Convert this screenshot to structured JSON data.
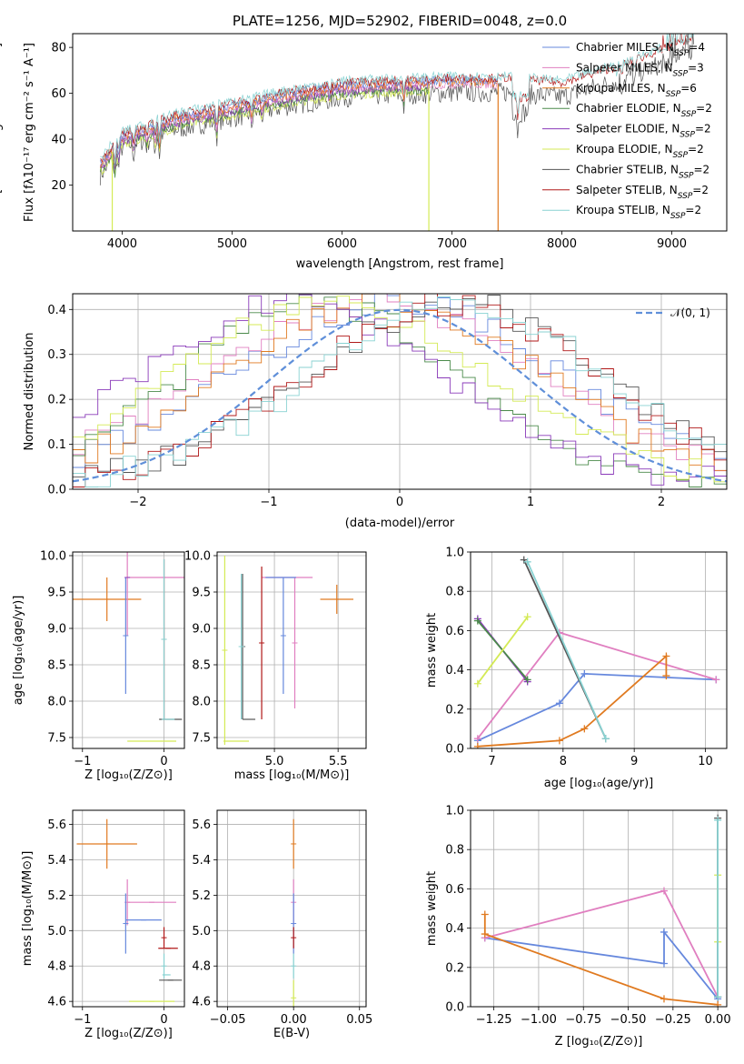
{
  "colors": {
    "chabrier_miles": "#6688dd",
    "salpeter_miles": "#e07fc0",
    "kroupa_miles": "#e07a20",
    "chabrier_elodie": "#4a8a4a",
    "salpeter_elodie": "#8a3ab9",
    "kroupa_elodie": "#d4ea55",
    "chabrier_stelib": "#555555",
    "salpeter_stelib": "#b01818",
    "kroupa_stelib": "#88d2d2",
    "gaussian": "#5f8fd9",
    "grid": "#b0b0b0"
  },
  "chart_data": [
    {
      "type": "line",
      "title": "PLATE=1256, MJD=52902, FIBERID=0048, z=0.0",
      "xlabel": "wavelength [Angstrom, rest frame]",
      "ylabel": "Flux [fλ10⁻¹⁷ erg cm⁻² s⁻¹ A⁻¹]",
      "xlim": [
        3550,
        9500
      ],
      "ylim": [
        0,
        86
      ],
      "xticks": [
        "4000",
        "5000",
        "6000",
        "7000",
        "8000",
        "9000"
      ],
      "yticks": [
        "20",
        "40",
        "60",
        "80"
      ],
      "grid": false,
      "legend_position": "top-right",
      "series": [
        {
          "name": "Chabrier MILES, N_SSP=4",
          "color_key": "chabrier_miles"
        },
        {
          "name": "Salpeter MILES, N_SSP=3",
          "color_key": "salpeter_miles"
        },
        {
          "name": "Kroupa MILES, N_SSP=6",
          "color_key": "kroupa_miles"
        },
        {
          "name": "Chabrier ELODIE, N_SSP=2",
          "color_key": "chabrier_elodie"
        },
        {
          "name": "Salpeter ELODIE, N_SSP=2",
          "color_key": "salpeter_elodie"
        },
        {
          "name": "Kroupa ELODIE, N_SSP=2",
          "color_key": "kroupa_elodie"
        },
        {
          "name": "Chabrier STELIB, N_SSP=2",
          "color_key": "chabrier_stelib"
        },
        {
          "name": "Salpeter STELIB, N_SSP=2",
          "color_key": "salpeter_stelib"
        },
        {
          "name": "Kroupa STELIB, N_SSP=2",
          "color_key": "kroupa_stelib"
        }
      ],
      "legend": [
        {
          "pre": "Chabrier MILES, N",
          "sub": "SSP",
          "post": "=4"
        },
        {
          "pre": "Salpeter MILES, N",
          "sub": "SSP",
          "post": "=3"
        },
        {
          "pre": "Kroupa MILES, N",
          "sub": "SSP",
          "post": "=6"
        },
        {
          "pre": "Chabrier ELODIE, N",
          "sub": "SSP",
          "post": "=2"
        },
        {
          "pre": "Salpeter ELODIE, N",
          "sub": "SSP",
          "post": "=2"
        },
        {
          "pre": "Kroupa ELODIE, N",
          "sub": "SSP",
          "post": "=2"
        },
        {
          "pre": "Chabrier STELIB, N",
          "sub": "SSP",
          "post": "=2"
        },
        {
          "pre": "Salpeter STELIB, N",
          "sub": "SSP",
          "post": "=2"
        },
        {
          "pre": "Kroupa STELIB, N",
          "sub": "SSP",
          "post": "=2"
        }
      ],
      "continuum": {
        "x": [
          3800,
          4000,
          4500,
          5000,
          5500,
          6000,
          6500,
          7000,
          7500,
          8000,
          8500,
          9000,
          9200
        ],
        "y": [
          28,
          40,
          48,
          53,
          58,
          62,
          63,
          64,
          64,
          62,
          69,
          78,
          82
        ]
      },
      "spike_down": [
        {
          "x": 3910,
          "y_bottom": 0,
          "color_key": "kroupa_elodie"
        },
        {
          "x": 6790,
          "y_bottom": 0,
          "color_key": "kroupa_elodie"
        },
        {
          "x": 7420,
          "y_bottom": 0,
          "color_key": "kroupa_miles"
        }
      ]
    },
    {
      "type": "line",
      "xlabel": "(data-model)/error",
      "ylabel": "Normed distribution",
      "xlim": [
        -2.5,
        2.5
      ],
      "ylim": [
        0,
        0.435
      ],
      "xticks": [
        "−2",
        "−1",
        "0",
        "1",
        "2"
      ],
      "xtick_values": [
        -2,
        -1,
        0,
        1,
        2
      ],
      "yticks": [
        "0.0",
        "0.1",
        "0.2",
        "0.3",
        "0.4"
      ],
      "ytick_values": [
        0,
        0.1,
        0.2,
        0.3,
        0.4
      ],
      "grid": true,
      "legend_position": "top-right",
      "gaussian_label": "𝒩(0, 1)",
      "gaussian_color_key": "gaussian",
      "histogram_bins": 52
    },
    {
      "type": "scatter",
      "xlabel": "Z [log₁₀(Z/Z⊙)]",
      "ylabel": "age  [log₁₀(age/yr)]",
      "xlim": [
        -1.12,
        0.25
      ],
      "ylim": [
        7.35,
        10.05
      ],
      "xticks": [
        "−1",
        "0"
      ],
      "xtick_values": [
        -1,
        0
      ],
      "yticks": [
        "7.5",
        "8.0",
        "8.5",
        "9.0",
        "9.5",
        "10.0"
      ],
      "ytick_values": [
        7.5,
        8.0,
        8.5,
        9.0,
        9.5,
        10.0
      ],
      "grid": true,
      "points": [
        {
          "color_key": "kroupa_miles",
          "x": -0.7,
          "xerr": 0.42,
          "y": 9.4,
          "yerr": 0.3
        },
        {
          "color_key": "salpeter_miles",
          "x": -0.45,
          "xerr": 0.0,
          "y": 9.7,
          "yerr": 0.8
        },
        {
          "color_key": "salpeter_miles",
          "x": -0.1,
          "xerr": 0.35,
          "y": 9.7,
          "yerr": 0.0
        },
        {
          "color_key": "chabrier_miles",
          "x": -0.47,
          "xerr": 0.0,
          "y": 8.9,
          "yerr": 0.8
        },
        {
          "color_key": "salpeter_elodie",
          "x": -0.45,
          "xerr": 0.0,
          "y": 9.7,
          "yerr": 0.0
        },
        {
          "color_key": "salpeter_stelib",
          "x": 0.0,
          "xerr": 0.0,
          "y": 8.85,
          "yerr": 1.1
        },
        {
          "color_key": "kroupa_stelib",
          "x": 0.0,
          "xerr": 0.0,
          "y": 8.85,
          "yerr": 1.1
        },
        {
          "color_key": "chabrier_stelib",
          "x": 0.08,
          "xerr": 0.14,
          "y": 7.75,
          "yerr": 0.0
        },
        {
          "color_key": "kroupa_stelib",
          "x": 0.05,
          "xerr": 0.08,
          "y": 7.75,
          "yerr": 0.0
        },
        {
          "color_key": "kroupa_elodie",
          "x": -0.15,
          "xerr": 0.3,
          "y": 7.45,
          "yerr": 0.0
        }
      ]
    },
    {
      "type": "scatter",
      "xlabel": "mass [log₁₀(M/M⊙)]",
      "ylabel": "",
      "xlim": [
        4.55,
        5.72
      ],
      "ylim": [
        7.35,
        10.05
      ],
      "xticks": [
        "5.0",
        "5.5"
      ],
      "xtick_values": [
        5.0,
        5.5
      ],
      "yticks": [
        "7.5",
        "8.0",
        "8.5",
        "9.0",
        "9.5",
        "10.0"
      ],
      "ytick_values": [
        7.5,
        8.0,
        8.5,
        9.0,
        9.5,
        10.0
      ],
      "grid": true,
      "points": [
        {
          "color_key": "kroupa_miles",
          "x": 5.49,
          "xerr": 0.13,
          "y": 9.4,
          "yerr": 0.2
        },
        {
          "color_key": "salpeter_miles",
          "x": 5.16,
          "xerr": 0.0,
          "y": 8.8,
          "yerr": 0.9
        },
        {
          "color_key": "salpeter_miles",
          "x": 5.1,
          "xerr": 0.2,
          "y": 9.7,
          "yerr": 0.0
        },
        {
          "color_key": "chabrier_miles",
          "x": 5.07,
          "xerr": 0.0,
          "y": 8.9,
          "yerr": 0.8
        },
        {
          "color_key": "chabrier_miles",
          "x": 5.05,
          "xerr": 0.12,
          "y": 9.7,
          "yerr": 0.0
        },
        {
          "color_key": "salpeter_stelib",
          "x": 4.9,
          "xerr": 0.0,
          "y": 8.8,
          "yerr": 1.05
        },
        {
          "color_key": "chabrier_stelib",
          "x": 4.75,
          "xerr": 0.0,
          "y": 8.75,
          "yerr": 1.0
        },
        {
          "color_key": "kroupa_stelib",
          "x": 4.74,
          "xerr": 0.0,
          "y": 8.75,
          "yerr": 1.0
        },
        {
          "color_key": "chabrier_stelib",
          "x": 4.8,
          "xerr": 0.05,
          "y": 7.75,
          "yerr": 0.0
        },
        {
          "color_key": "kroupa_elodie",
          "x": 4.61,
          "xerr": 0.0,
          "y": 8.7,
          "yerr": 1.3
        },
        {
          "color_key": "kroupa_elodie",
          "x": 4.7,
          "xerr": 0.1,
          "y": 7.45,
          "yerr": 0.0
        }
      ]
    },
    {
      "type": "line",
      "xlabel": "age  [log₁₀(age/yr)]",
      "ylabel": "mass weight",
      "xlim": [
        6.7,
        10.3
      ],
      "ylim": [
        0,
        1.0
      ],
      "xticks": [
        "7",
        "8",
        "9",
        "10"
      ],
      "xtick_values": [
        7,
        8,
        9,
        10
      ],
      "yticks": [
        "0.0",
        "0.2",
        "0.4",
        "0.6",
        "0.8",
        "1.0"
      ],
      "ytick_values": [
        0,
        0.2,
        0.4,
        0.6,
        0.8,
        1.0
      ],
      "grid": true,
      "series": [
        {
          "color_key": "chabrier_miles",
          "x": [
            6.8,
            7.95,
            8.3,
            10.15
          ],
          "y": [
            0.04,
            0.23,
            0.38,
            0.35
          ]
        },
        {
          "color_key": "salpeter_miles",
          "x": [
            6.8,
            7.95,
            10.15
          ],
          "y": [
            0.05,
            0.59,
            0.35
          ]
        },
        {
          "color_key": "kroupa_miles",
          "x": [
            6.8,
            7.95,
            8.3,
            9.45,
            9.45
          ],
          "y": [
            0.01,
            0.04,
            0.1,
            0.47,
            0.37
          ]
        },
        {
          "color_key": "salpeter_elodie",
          "x": [
            6.8,
            7.5
          ],
          "y": [
            0.66,
            0.34
          ]
        },
        {
          "color_key": "chabrier_elodie",
          "x": [
            6.8,
            7.5
          ],
          "y": [
            0.65,
            0.35
          ]
        },
        {
          "color_key": "kroupa_elodie",
          "x": [
            6.8,
            7.5
          ],
          "y": [
            0.33,
            0.67
          ]
        },
        {
          "color_key": "chabrier_stelib",
          "x": [
            7.45,
            8.6
          ],
          "y": [
            0.96,
            0.05
          ]
        },
        {
          "color_key": "kroupa_stelib",
          "x": [
            7.5,
            8.6
          ],
          "y": [
            0.95,
            0.05
          ]
        }
      ]
    },
    {
      "type": "scatter",
      "xlabel": "Z [log₁₀(Z/Z⊙)]",
      "ylabel": "mass [log₁₀(M/M⊙)]",
      "xlim": [
        -1.12,
        0.25
      ],
      "ylim": [
        4.57,
        5.68
      ],
      "xticks": [
        "−1",
        "0"
      ],
      "xtick_values": [
        -1,
        0
      ],
      "yticks": [
        "4.6",
        "4.8",
        "5.0",
        "5.2",
        "5.4",
        "5.6"
      ],
      "ytick_values": [
        4.6,
        4.8,
        5.0,
        5.2,
        5.4,
        5.6
      ],
      "grid": true,
      "points": [
        {
          "color_key": "kroupa_miles",
          "x": -0.7,
          "xerr": 0.37,
          "y": 5.49,
          "yerr": 0.14
        },
        {
          "color_key": "salpeter_miles",
          "x": -0.15,
          "xerr": 0.3,
          "y": 5.16,
          "yerr": 0.0
        },
        {
          "color_key": "salpeter_miles",
          "x": -0.45,
          "xerr": 0.0,
          "y": 5.16,
          "yerr": 0.13
        },
        {
          "color_key": "chabrier_miles",
          "x": -0.25,
          "xerr": 0.22,
          "y": 5.06,
          "yerr": 0.0
        },
        {
          "color_key": "chabrier_miles",
          "x": -0.47,
          "xerr": 0.0,
          "y": 5.04,
          "yerr": 0.17
        },
        {
          "color_key": "salpeter_stelib",
          "x": 0.05,
          "xerr": 0.12,
          "y": 4.9,
          "yerr": 0.0
        },
        {
          "color_key": "salpeter_stelib",
          "x": 0.0,
          "xerr": 0.0,
          "y": 4.96,
          "yerr": 0.06
        },
        {
          "color_key": "kroupa_stelib",
          "x": 0.03,
          "xerr": 0.05,
          "y": 4.75,
          "yerr": 0.0
        },
        {
          "color_key": "kroupa_stelib",
          "x": 0.0,
          "xerr": 0.0,
          "y": 4.8,
          "yerr": 0.07
        },
        {
          "color_key": "chabrier_stelib",
          "x": 0.08,
          "xerr": 0.14,
          "y": 4.72,
          "yerr": 0.0
        },
        {
          "color_key": "kroupa_elodie",
          "x": -0.15,
          "xerr": 0.28,
          "y": 4.6,
          "yerr": 0.0
        }
      ]
    },
    {
      "type": "scatter",
      "xlabel": "E(B-V)",
      "ylabel": "",
      "xlim": [
        -0.058,
        0.055
      ],
      "ylim": [
        4.57,
        5.68
      ],
      "xticks": [
        "−0.05",
        "0.00",
        "0.05"
      ],
      "xtick_values": [
        -0.05,
        0.0,
        0.05
      ],
      "yticks": [
        "4.6",
        "4.8",
        "5.0",
        "5.2",
        "5.4",
        "5.6"
      ],
      "ytick_values": [
        4.6,
        4.8,
        5.0,
        5.2,
        5.4,
        5.6
      ],
      "grid": true,
      "points": [
        {
          "color_key": "kroupa_miles",
          "x": 0.0,
          "xerr": 0.0,
          "y": 5.49,
          "yerr": 0.14
        },
        {
          "color_key": "salpeter_miles",
          "x": 0.0,
          "xerr": 0.0,
          "y": 5.16,
          "yerr": 0.13
        },
        {
          "color_key": "chabrier_miles",
          "x": 0.0,
          "xerr": 0.0,
          "y": 5.04,
          "yerr": 0.17
        },
        {
          "color_key": "salpeter_stelib",
          "x": 0.0,
          "xerr": 0.0,
          "y": 4.96,
          "yerr": 0.06
        },
        {
          "color_key": "kroupa_stelib",
          "x": 0.0,
          "xerr": 0.0,
          "y": 4.8,
          "yerr": 0.07
        },
        {
          "color_key": "kroupa_elodie",
          "x": 0.0,
          "xerr": 0.0,
          "y": 4.62,
          "yerr": 0.1
        }
      ]
    },
    {
      "type": "line",
      "xlabel": "Z [log₁₀(Z/Z⊙)]",
      "ylabel": "mass weight",
      "xlim": [
        -1.38,
        0.05
      ],
      "ylim": [
        0,
        1.0
      ],
      "xticks": [
        "−1.25",
        "−1.00",
        "−0.75",
        "−0.50",
        "−0.25",
        "0.00"
      ],
      "xtick_values": [
        -1.25,
        -1.0,
        -0.75,
        -0.5,
        -0.25,
        0.0
      ],
      "yticks": [
        "0.0",
        "0.2",
        "0.4",
        "0.6",
        "0.8",
        "1.0"
      ],
      "ytick_values": [
        0,
        0.2,
        0.4,
        0.6,
        0.8,
        1.0
      ],
      "grid": true,
      "series": [
        {
          "color_key": "chabrier_miles",
          "x": [
            -1.3,
            -0.3,
            -0.3,
            0.0
          ],
          "y": [
            0.35,
            0.22,
            0.38,
            0.04
          ]
        },
        {
          "color_key": "salpeter_miles",
          "x": [
            -1.3,
            -0.3,
            0.0
          ],
          "y": [
            0.35,
            0.59,
            0.05
          ]
        },
        {
          "color_key": "kroupa_miles",
          "x": [
            -1.3,
            -1.3,
            -0.3,
            0.0
          ],
          "y": [
            0.47,
            0.37,
            0.04,
            0.01
          ]
        },
        {
          "color_key": "chabrier_stelib",
          "x": [
            0.0,
            0.0
          ],
          "y": [
            0.05,
            0.96
          ]
        },
        {
          "color_key": "kroupa_elodie",
          "x": [
            0.0,
            0.0
          ],
          "y": [
            0.33,
            0.67
          ]
        },
        {
          "color_key": "kroupa_stelib",
          "x": [
            0.0,
            0.0
          ],
          "y": [
            0.05,
            0.95
          ]
        }
      ]
    }
  ]
}
